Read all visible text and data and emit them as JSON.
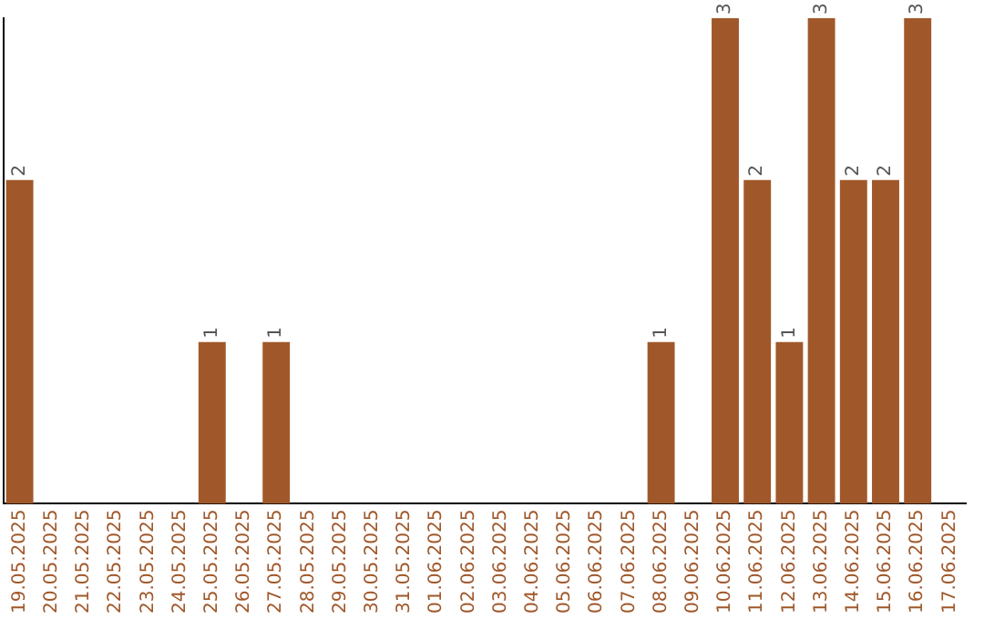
{
  "chart_data": {
    "type": "bar",
    "categories": [
      "19.05.2025",
      "20.05.2025",
      "21.05.2025",
      "22.05.2025",
      "23.05.2025",
      "24.05.2025",
      "25.05.2025",
      "26.05.2025",
      "27.05.2025",
      "28.05.2025",
      "29.05.2025",
      "30.05.2025",
      "31.05.2025",
      "01.06.2025",
      "02.06.2025",
      "03.06.2025",
      "04.06.2025",
      "05.06.2025",
      "06.06.2025",
      "07.06.2025",
      "08.06.2025",
      "09.06.2025",
      "10.06.2025",
      "11.06.2025",
      "12.06.2025",
      "13.06.2025",
      "14.06.2025",
      "15.06.2025",
      "16.06.2025",
      "17.06.2025"
    ],
    "values": [
      2,
      0,
      0,
      0,
      0,
      0,
      1,
      0,
      1,
      0,
      0,
      0,
      0,
      0,
      0,
      0,
      0,
      0,
      0,
      0,
      1,
      0,
      3,
      2,
      1,
      3,
      2,
      2,
      3,
      0
    ],
    "value_labels": [
      "2",
      null,
      null,
      null,
      null,
      null,
      "1",
      null,
      "1",
      null,
      null,
      null,
      null,
      null,
      null,
      null,
      null,
      null,
      null,
      null,
      "1",
      null,
      "3",
      "2",
      "1",
      "3",
      "2",
      "2",
      "3",
      null
    ],
    "color": "#a0582a",
    "tick_labels": "x",
    "grid": false,
    "legend": false
  }
}
